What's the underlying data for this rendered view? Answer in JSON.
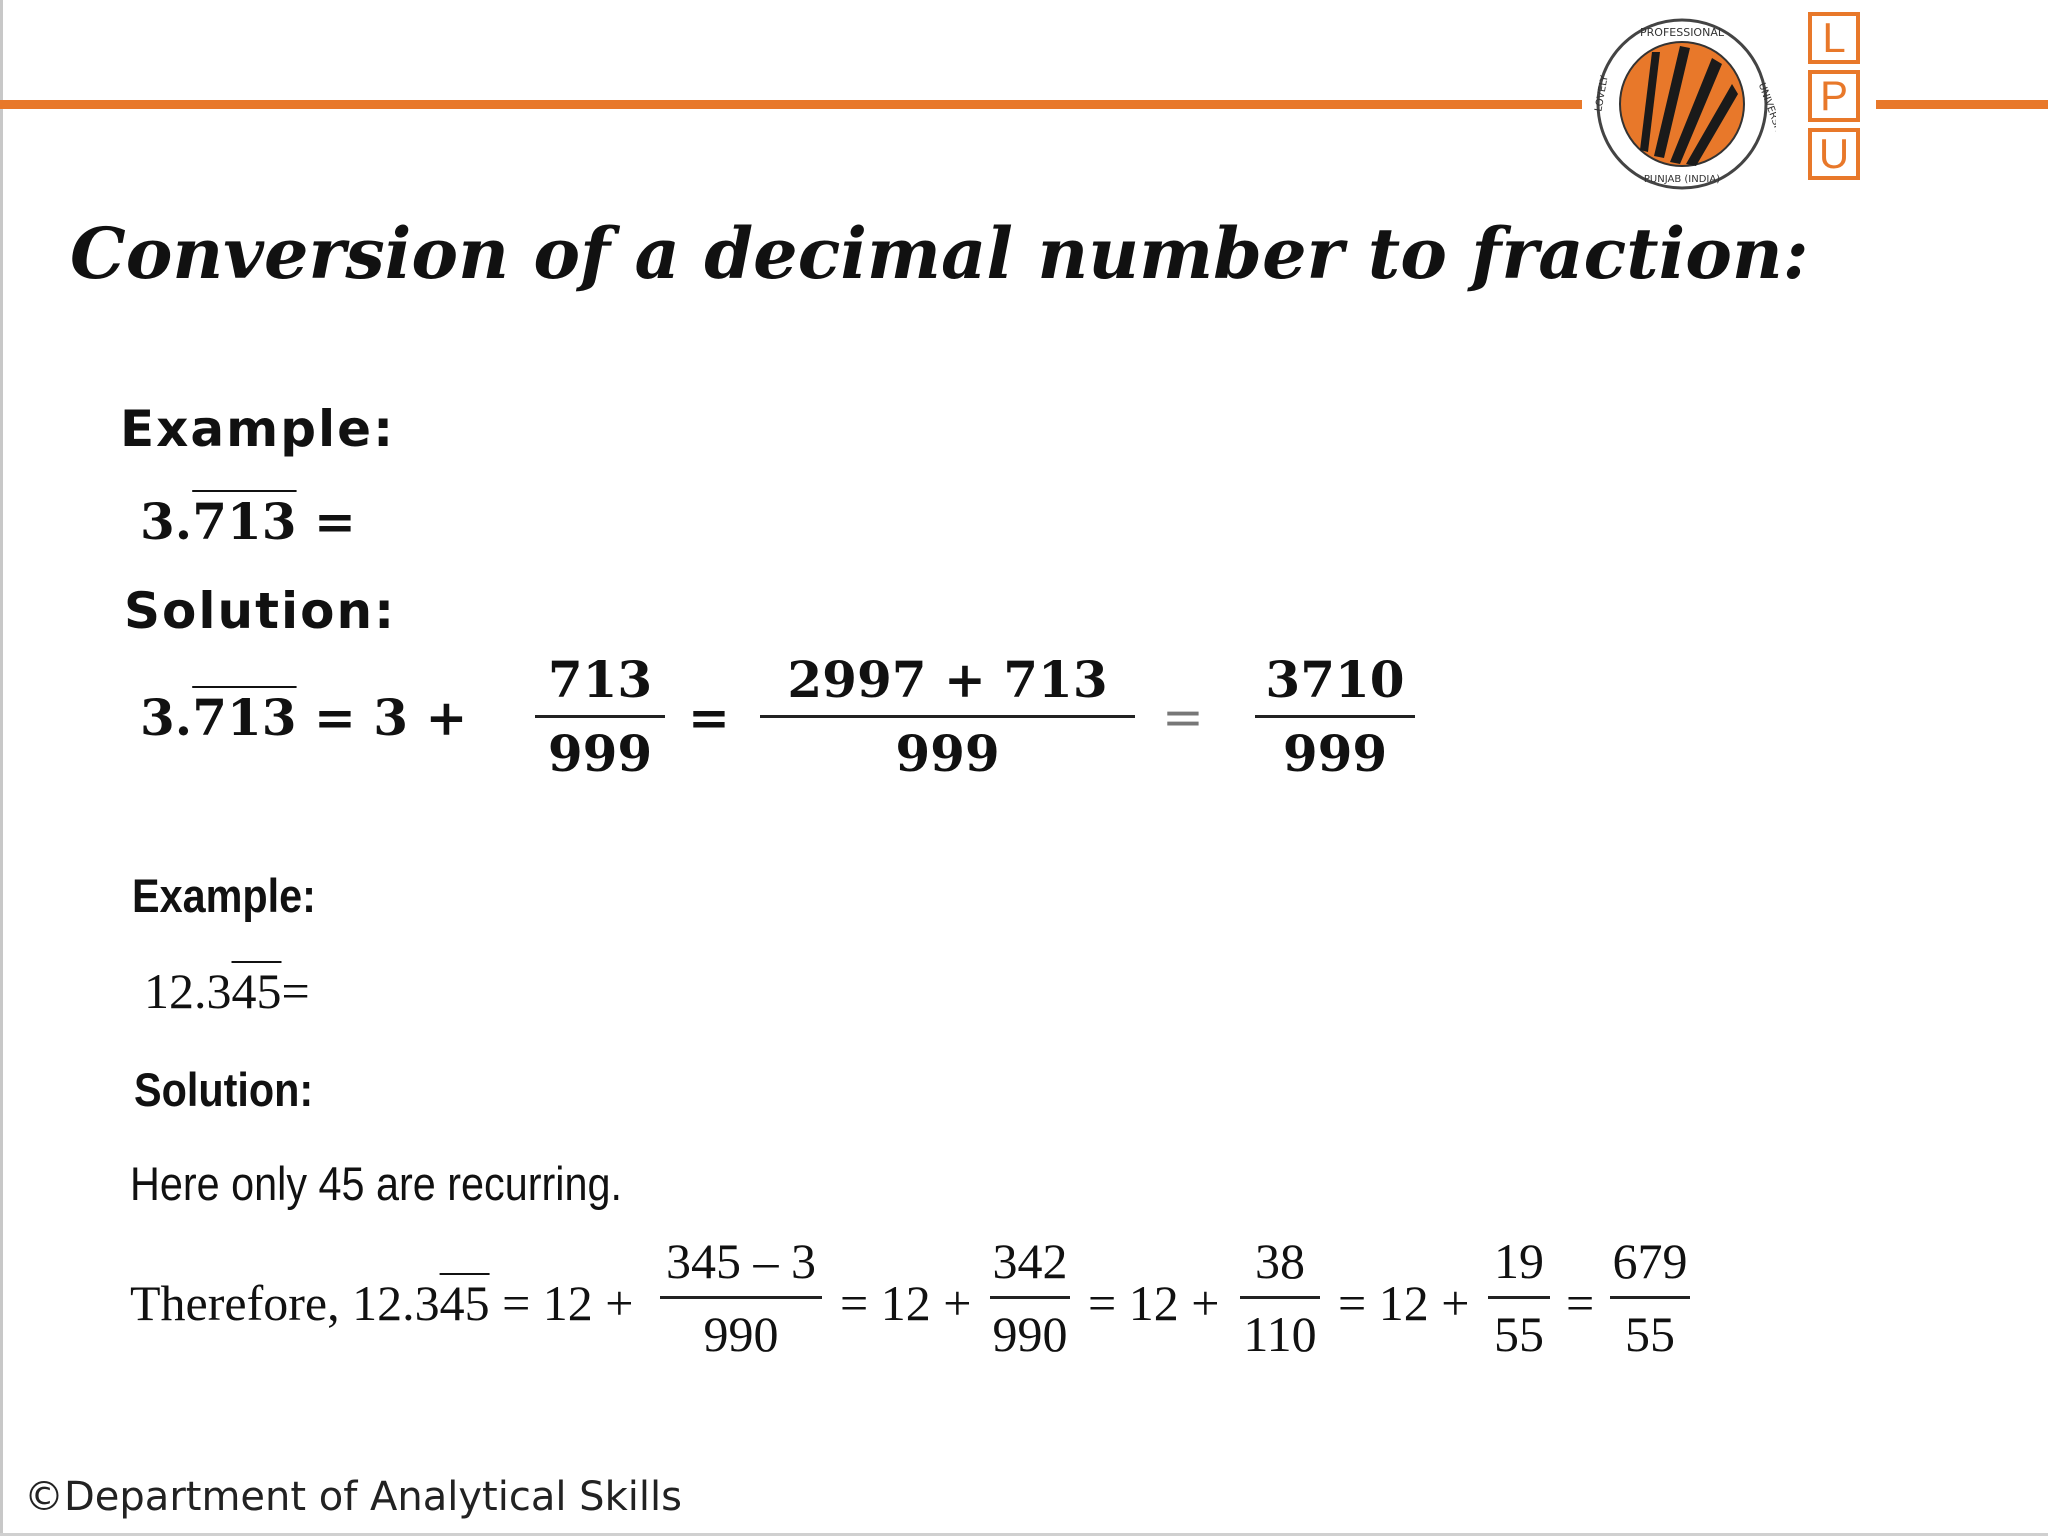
{
  "header": {
    "seal_text_top": "PROFESSIONAL",
    "seal_text_left": "LOVELY",
    "seal_text_right": "UNIVERSITY",
    "seal_text_bottom": "PUNJAB (INDIA)",
    "lpu_letters": [
      "L",
      "P",
      "U"
    ],
    "accent_color": "#e8782a"
  },
  "title": "Conversion of a decimal number to fraction:",
  "example1": {
    "label": "Example:",
    "problem_int": "3.",
    "problem_rep": "713",
    "problem_eq": " =",
    "solution_label": "Solution:",
    "sol_int": "3.",
    "sol_rep": "713",
    "sol_mid": " = 3 +",
    "f1_num": "713",
    "f1_den": "999",
    "eq1": "=",
    "f2_num": "2997 + 713",
    "f2_den": "999",
    "eq2": "=",
    "f3_num": "3710",
    "f3_den": "999"
  },
  "example2": {
    "label": "Example:",
    "problem_int": "12.3",
    "problem_rep": "45",
    "problem_eq": "=",
    "solution_label": "Solution:",
    "note": "Here only 45 are recurring.",
    "therefore": "Therefore, 12.3",
    "rep": "45",
    "after_rep": " = 12 +",
    "f1_num": "345 – 3",
    "f1_den": "990",
    "m1": "= 12 +",
    "f2_num": "342",
    "f2_den": "990",
    "m2": "= 12 +",
    "f3_num": "38",
    "f3_den": "110",
    "m3": "= 12 +",
    "f4_num": "19",
    "f4_den": "55",
    "m4": "=",
    "f5_num": "679",
    "f5_den": "55"
  },
  "footer": "©Department of Analytical Skills"
}
